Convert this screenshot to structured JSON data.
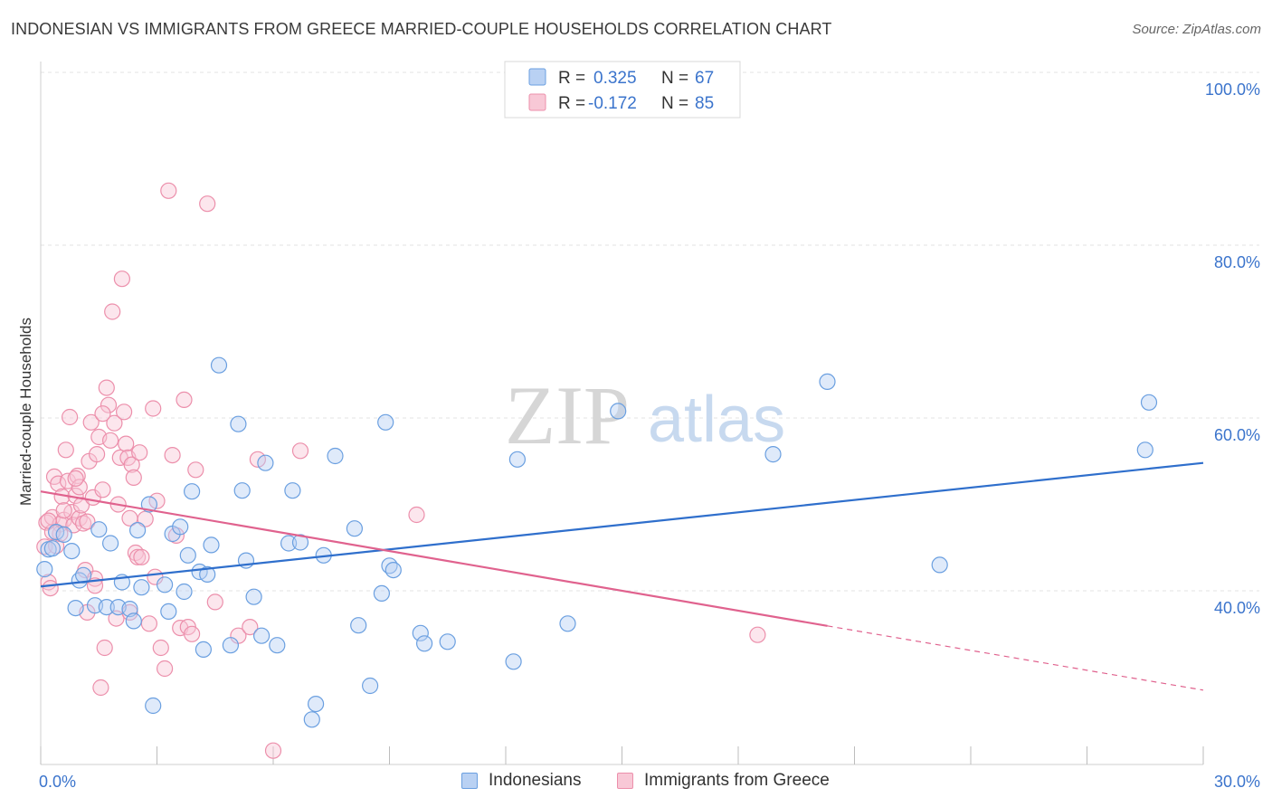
{
  "title": "INDONESIAN VS IMMIGRANTS FROM GREECE MARRIED-COUPLE HOUSEHOLDS CORRELATION CHART",
  "source": "Source: ZipAtlas.com",
  "watermark": {
    "zip": "ZIP",
    "atlas": "atlas"
  },
  "colors": {
    "blue": "#6a9fe0",
    "blue_fill": "#b9d1f3",
    "blue_line": "#2f6fcc",
    "pink": "#ec8fab",
    "pink_fill": "#f8c8d6",
    "pink_line": "#e0628e",
    "axis_text": "#3b74cc",
    "grid": "#e3e3e3"
  },
  "legend_top": {
    "blue": {
      "r_label": "R = ",
      "r_value": "0.325",
      "n_label": "N = ",
      "n_value": "67"
    },
    "pink": {
      "r_label": "R = ",
      "r_value": "-0.172",
      "n_label": "N = ",
      "n_value": "85"
    }
  },
  "chart_data": {
    "type": "scatter",
    "title": "INDONESIAN VS IMMIGRANTS FROM GREECE MARRIED-COUPLE HOUSEHOLDS CORRELATION CHART",
    "xlabel": "",
    "ylabel": "Married-couple Households",
    "xlim": [
      0,
      30
    ],
    "ylim": [
      20,
      105
    ],
    "x_tick_labels": {
      "min": "0.0%",
      "max": "30.0%"
    },
    "y_ticks": [
      40,
      60,
      80,
      100
    ],
    "y_tick_labels": [
      "40.0%",
      "60.0%",
      "80.0%",
      "100.0%"
    ],
    "grid": true,
    "legend_placement": "top-center",
    "series": [
      {
        "name": "Indonesians",
        "color": "#6a9fe0",
        "trend": {
          "x": [
            0,
            30
          ],
          "y": [
            40.5,
            54.8
          ],
          "dashed_from": null
        },
        "points": [
          [
            0.1,
            42.5
          ],
          [
            0.2,
            44.8
          ],
          [
            0.3,
            44.9
          ],
          [
            0.4,
            46.8
          ],
          [
            0.6,
            46.5
          ],
          [
            0.8,
            44.6
          ],
          [
            0.9,
            38.0
          ],
          [
            1.0,
            41.2
          ],
          [
            1.1,
            41.8
          ],
          [
            1.4,
            38.3
          ],
          [
            1.5,
            47.1
          ],
          [
            1.7,
            38.1
          ],
          [
            1.8,
            45.5
          ],
          [
            2.0,
            38.1
          ],
          [
            2.1,
            41.0
          ],
          [
            2.3,
            37.9
          ],
          [
            2.4,
            36.5
          ],
          [
            2.5,
            47.0
          ],
          [
            2.6,
            40.4
          ],
          [
            2.8,
            50.0
          ],
          [
            2.9,
            26.7
          ],
          [
            3.2,
            40.7
          ],
          [
            3.3,
            37.6
          ],
          [
            3.4,
            46.6
          ],
          [
            3.6,
            47.4
          ],
          [
            3.7,
            39.9
          ],
          [
            3.8,
            44.1
          ],
          [
            3.9,
            51.5
          ],
          [
            4.1,
            42.2
          ],
          [
            4.2,
            33.2
          ],
          [
            4.3,
            41.9
          ],
          [
            4.4,
            45.3
          ],
          [
            4.6,
            66.1
          ],
          [
            4.9,
            33.7
          ],
          [
            5.1,
            59.3
          ],
          [
            5.2,
            51.6
          ],
          [
            5.3,
            43.5
          ],
          [
            5.5,
            39.3
          ],
          [
            5.7,
            34.8
          ],
          [
            5.8,
            54.8
          ],
          [
            6.1,
            33.7
          ],
          [
            6.4,
            45.5
          ],
          [
            6.5,
            51.6
          ],
          [
            6.7,
            45.6
          ],
          [
            7.0,
            25.1
          ],
          [
            7.1,
            26.9
          ],
          [
            7.3,
            44.1
          ],
          [
            7.6,
            55.6
          ],
          [
            8.1,
            47.2
          ],
          [
            8.2,
            36.0
          ],
          [
            8.5,
            29.0
          ],
          [
            8.8,
            39.7
          ],
          [
            8.9,
            59.5
          ],
          [
            9.0,
            42.9
          ],
          [
            9.1,
            42.4
          ],
          [
            9.8,
            35.1
          ],
          [
            9.9,
            33.9
          ],
          [
            10.5,
            34.1
          ],
          [
            12.2,
            31.8
          ],
          [
            12.3,
            55.2
          ],
          [
            13.6,
            36.2
          ],
          [
            14.9,
            60.8
          ],
          [
            18.9,
            55.8
          ],
          [
            20.3,
            64.2
          ],
          [
            23.2,
            43.0
          ],
          [
            28.6,
            61.8
          ],
          [
            28.5,
            56.3
          ]
        ]
      },
      {
        "name": "Immigrants from Greece",
        "color": "#ec8fab",
        "trend": {
          "x": [
            0,
            30
          ],
          "y": [
            51.5,
            28.5
          ],
          "dashed_from": 20.3
        },
        "points": [
          [
            0.1,
            45.1
          ],
          [
            0.15,
            47.9
          ],
          [
            0.2,
            41.0
          ],
          [
            0.25,
            40.3
          ],
          [
            0.3,
            48.5
          ],
          [
            0.35,
            53.2
          ],
          [
            0.4,
            45.2
          ],
          [
            0.45,
            52.4
          ],
          [
            0.5,
            47.7
          ],
          [
            0.55,
            50.9
          ],
          [
            0.6,
            48.2
          ],
          [
            0.65,
            56.3
          ],
          [
            0.7,
            52.7
          ],
          [
            0.75,
            60.1
          ],
          [
            0.8,
            49.1
          ],
          [
            0.85,
            47.6
          ],
          [
            0.9,
            51.0
          ],
          [
            0.95,
            53.3
          ],
          [
            1.0,
            48.4
          ],
          [
            1.05,
            49.9
          ],
          [
            1.1,
            47.8
          ],
          [
            1.15,
            42.4
          ],
          [
            1.2,
            37.5
          ],
          [
            1.25,
            55.0
          ],
          [
            1.3,
            59.5
          ],
          [
            1.35,
            50.8
          ],
          [
            1.4,
            41.4
          ],
          [
            1.45,
            55.8
          ],
          [
            1.5,
            57.8
          ],
          [
            1.55,
            28.8
          ],
          [
            1.6,
            51.7
          ],
          [
            1.65,
            33.4
          ],
          [
            1.7,
            63.5
          ],
          [
            1.75,
            61.5
          ],
          [
            1.8,
            57.4
          ],
          [
            1.85,
            72.3
          ],
          [
            1.9,
            59.4
          ],
          [
            1.95,
            36.8
          ],
          [
            2.0,
            50.0
          ],
          [
            2.05,
            55.4
          ],
          [
            2.1,
            76.1
          ],
          [
            2.15,
            60.7
          ],
          [
            2.2,
            57.0
          ],
          [
            2.25,
            55.4
          ],
          [
            2.3,
            37.5
          ],
          [
            2.35,
            54.6
          ],
          [
            2.4,
            53.1
          ],
          [
            2.45,
            44.4
          ],
          [
            2.5,
            43.9
          ],
          [
            2.55,
            56.0
          ],
          [
            2.6,
            43.9
          ],
          [
            2.7,
            48.3
          ],
          [
            2.8,
            36.2
          ],
          [
            2.9,
            61.1
          ],
          [
            2.95,
            41.6
          ],
          [
            3.0,
            50.4
          ],
          [
            3.1,
            33.4
          ],
          [
            3.2,
            31.0
          ],
          [
            3.3,
            86.3
          ],
          [
            3.4,
            55.7
          ],
          [
            3.5,
            46.4
          ],
          [
            3.6,
            35.7
          ],
          [
            3.7,
            62.1
          ],
          [
            3.8,
            35.8
          ],
          [
            3.9,
            35.0
          ],
          [
            4.0,
            54.0
          ],
          [
            4.3,
            84.8
          ],
          [
            4.5,
            38.7
          ],
          [
            5.1,
            34.8
          ],
          [
            5.4,
            35.8
          ],
          [
            5.6,
            55.2
          ],
          [
            6.0,
            21.5
          ],
          [
            6.7,
            56.2
          ],
          [
            9.7,
            48.8
          ],
          [
            18.5,
            34.9
          ],
          [
            0.5,
            46.6
          ],
          [
            1.0,
            52.0
          ],
          [
            0.3,
            46.8
          ],
          [
            1.6,
            60.5
          ],
          [
            0.2,
            48.1
          ],
          [
            2.3,
            48.4
          ],
          [
            0.9,
            53.0
          ],
          [
            1.4,
            40.6
          ],
          [
            0.6,
            49.3
          ],
          [
            1.2,
            48.0
          ]
        ]
      }
    ]
  }
}
